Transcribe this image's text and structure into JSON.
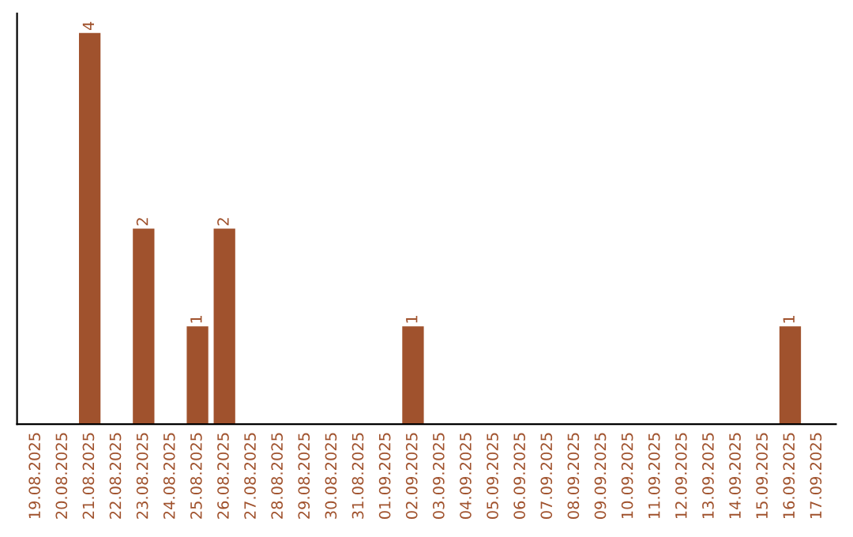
{
  "chart_data": {
    "type": "bar",
    "categories": [
      "19.08.2025",
      "20.08.2025",
      "21.08.2025",
      "22.08.2025",
      "23.08.2025",
      "24.08.2025",
      "25.08.2025",
      "26.08.2025",
      "27.08.2025",
      "28.08.2025",
      "29.08.2025",
      "30.08.2025",
      "31.08.2025",
      "01.09.2025",
      "02.09.2025",
      "03.09.2025",
      "04.09.2025",
      "05.09.2025",
      "06.09.2025",
      "07.09.2025",
      "08.09.2025",
      "09.09.2025",
      "10.09.2025",
      "11.09.2025",
      "12.09.2025",
      "13.09.2025",
      "14.09.2025",
      "15.09.2025",
      "16.09.2025",
      "17.09.2025"
    ],
    "values": [
      0,
      0,
      4,
      0,
      2,
      0,
      1,
      2,
      0,
      0,
      0,
      0,
      0,
      0,
      1,
      0,
      0,
      0,
      0,
      0,
      0,
      0,
      0,
      0,
      0,
      0,
      0,
      0,
      1,
      0
    ],
    "value_labels": [
      null,
      null,
      "4",
      null,
      "2",
      null,
      "1",
      "2",
      null,
      null,
      null,
      null,
      null,
      null,
      "1",
      null,
      null,
      null,
      null,
      null,
      null,
      null,
      null,
      null,
      null,
      null,
      null,
      null,
      "1",
      null
    ],
    "color": "#a0522d",
    "tick_labels": "x",
    "grid": false,
    "legend": false
  }
}
